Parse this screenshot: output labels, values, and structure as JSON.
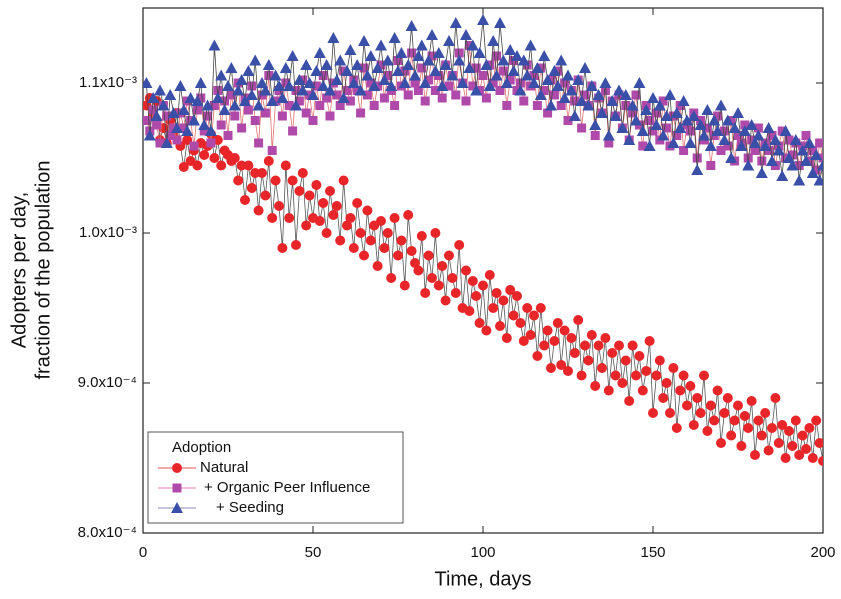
{
  "chart_data": {
    "type": "scatter-line",
    "xlabel": "Time, days",
    "ylabel": [
      "Adopters per day,",
      "fraction of the population"
    ],
    "legend_title": "Adoption",
    "legend": "lower left",
    "xlim": [
      0,
      200
    ],
    "xticks": [
      0,
      50,
      100,
      150,
      200
    ],
    "ylim": [
      0.0008,
      0.00115
    ],
    "yticks": [
      {
        "value": 0.0008,
        "label": "8.0x10⁻⁴"
      },
      {
        "value": 0.0009,
        "label": "9.0x10⁻⁴"
      },
      {
        "value": 0.001,
        "label": "1.0x10⁻³"
      },
      {
        "value": 0.0011,
        "label": "1.1x10⁻³"
      }
    ],
    "x": [
      1,
      2,
      3,
      4,
      5,
      6,
      7,
      8,
      9,
      10,
      11,
      12,
      13,
      14,
      15,
      16,
      17,
      18,
      19,
      20,
      21,
      22,
      23,
      24,
      25,
      26,
      27,
      28,
      29,
      30,
      31,
      32,
      33,
      34,
      35,
      36,
      37,
      38,
      39,
      40,
      41,
      42,
      43,
      44,
      45,
      46,
      47,
      48,
      49,
      50,
      51,
      52,
      53,
      54,
      55,
      56,
      57,
      58,
      59,
      60,
      61,
      62,
      63,
      64,
      65,
      66,
      67,
      68,
      69,
      70,
      71,
      72,
      73,
      74,
      75,
      76,
      77,
      78,
      79,
      80,
      81,
      82,
      83,
      84,
      85,
      86,
      87,
      88,
      89,
      90,
      91,
      92,
      93,
      94,
      95,
      96,
      97,
      98,
      99,
      100,
      101,
      102,
      103,
      104,
      105,
      106,
      107,
      108,
      109,
      110,
      111,
      112,
      113,
      114,
      115,
      116,
      117,
      118,
      119,
      120,
      121,
      122,
      123,
      124,
      125,
      126,
      127,
      128,
      129,
      130,
      131,
      132,
      133,
      134,
      135,
      136,
      137,
      138,
      139,
      140,
      141,
      142,
      143,
      144,
      145,
      146,
      147,
      148,
      149,
      150,
      151,
      152,
      153,
      154,
      155,
      156,
      157,
      158,
      159,
      160,
      161,
      162,
      163,
      164,
      165,
      166,
      167,
      168,
      169,
      170,
      171,
      172,
      173,
      174,
      175,
      176,
      177,
      178,
      179,
      180,
      181,
      182,
      183,
      184,
      185,
      186,
      187,
      188,
      189,
      190,
      191,
      192,
      193,
      194,
      195,
      196,
      197,
      198,
      199,
      200
    ],
    "series": [
      {
        "name": "Natural",
        "marker": "circle",
        "color": "#e8262a",
        "line_color": "#555555",
        "legend_line_color": "#e05050",
        "values": [
          0.001085,
          0.00109,
          0.001078,
          0.001088,
          0.001062,
          0.00107,
          0.00106,
          0.001075,
          0.001065,
          0.00108,
          0.001058,
          0.001044,
          0.001062,
          0.001048,
          0.001055,
          0.001045,
          0.00106,
          0.001052,
          0.001058,
          0.001066,
          0.00105,
          0.001062,
          0.001045,
          0.001055,
          0.001052,
          0.001048,
          0.00105,
          0.001035,
          0.001045,
          0.001022,
          0.001045,
          0.00103,
          0.00104,
          0.001015,
          0.00104,
          0.001025,
          0.001048,
          0.00101,
          0.001035,
          0.001018,
          0.00099,
          0.001045,
          0.00101,
          0.001035,
          0.000992,
          0.001028,
          0.00104,
          0.001005,
          0.001025,
          0.00101,
          0.001032,
          0.001008,
          0.00102,
          0.001,
          0.001028,
          0.001012,
          0.001018,
          0.000995,
          0.001035,
          0.001005,
          0.00101,
          0.00099,
          0.00102,
          0.001,
          0.000985,
          0.001015,
          0.000995,
          0.001005,
          0.000978,
          0.001008,
          0.00099,
          0.001,
          0.00097,
          0.00101,
          0.000985,
          0.000995,
          0.000965,
          0.001012,
          0.000988,
          0.00098,
          0.000975,
          0.000998,
          0.00096,
          0.000985,
          0.00097,
          0.001,
          0.000965,
          0.000978,
          0.000955,
          0.000985,
          0.00097,
          0.00096,
          0.000992,
          0.00095,
          0.000975,
          0.000948,
          0.000968,
          0.000958,
          0.00094,
          0.000965,
          0.000935,
          0.000972,
          0.00095,
          0.00096,
          0.000938,
          0.000955,
          0.00093,
          0.000962,
          0.000945,
          0.000958,
          0.00094,
          0.000928,
          0.00095,
          0.000932,
          0.000945,
          0.000918,
          0.00095,
          0.000925,
          0.000935,
          0.00091,
          0.000928,
          0.00094,
          0.000912,
          0.000935,
          0.000908,
          0.00093,
          0.00092,
          0.000942,
          0.000905,
          0.000925,
          0.000915,
          0.000932,
          0.000898,
          0.000925,
          0.00091,
          0.00093,
          0.000895,
          0.00092,
          0.000905,
          0.000925,
          0.0009,
          0.000915,
          0.000888,
          0.000925,
          0.000905,
          0.000918,
          0.000895,
          0.000908,
          0.000928,
          0.00088,
          0.000905,
          0.000915,
          0.00089,
          0.0009,
          0.00088,
          0.00091,
          0.00087,
          0.000895,
          0.000905,
          0.000885,
          0.000898,
          0.000872,
          0.00089,
          0.00088,
          0.000905,
          0.000868,
          0.000885,
          0.000875,
          0.000895,
          0.00086,
          0.00088,
          0.00089,
          0.000865,
          0.000875,
          0.000885,
          0.000858,
          0.000878,
          0.00087,
          0.000888,
          0.000852,
          0.000875,
          0.000865,
          0.00088,
          0.000855,
          0.00087,
          0.00089,
          0.00086,
          0.000872,
          0.00085,
          0.000868,
          0.000858,
          0.000875,
          0.000852,
          0.000865,
          0.000856,
          0.00087,
          0.00085,
          0.000875,
          0.00086,
          0.000848
        ]
      },
      {
        "name": "+ Organic Peer Influence",
        "marker": "square",
        "color": "#b04aaa",
        "line_color": "#e07070",
        "legend_line_color": "#e080b0",
        "values": [
          0.001075,
          0.001068,
          0.001082,
          0.001072,
          0.00106,
          0.001085,
          0.001078,
          0.001065,
          0.00107,
          0.001062,
          0.00108,
          0.00107,
          0.001088,
          0.001075,
          0.001058,
          0.001082,
          0.00109,
          0.001068,
          0.001078,
          0.00106,
          0.001085,
          0.001095,
          0.001072,
          0.001088,
          0.001065,
          0.001092,
          0.001078,
          0.0011,
          0.00107,
          0.00109,
          0.001082,
          0.001098,
          0.001075,
          0.00106,
          0.001092,
          0.00108,
          0.001105,
          0.001055,
          0.001088,
          0.001095,
          0.001078,
          0.0011,
          0.001085,
          0.001068,
          0.001095,
          0.001088,
          0.001102,
          0.00108,
          0.001092,
          0.001075,
          0.001098,
          0.001085,
          0.001105,
          0.00109,
          0.001078,
          0.0011,
          0.001092,
          0.001085,
          0.001108,
          0.001095,
          0.001088,
          0.001102,
          0.001095,
          0.00108,
          0.00111,
          0.001092,
          0.0011,
          0.001085,
          0.001098,
          0.001112,
          0.00109,
          0.001105,
          0.001095,
          0.001085,
          0.001115,
          0.001098,
          0.001108,
          0.001092,
          0.00112,
          0.0011,
          0.001095,
          0.00111,
          0.001088,
          0.001102,
          0.001118,
          0.001095,
          0.001105,
          0.00109,
          0.001112,
          0.001098,
          0.001105,
          0.001092,
          0.00112,
          0.0011,
          0.001088,
          0.001125,
          0.001098,
          0.00111,
          0.001095,
          0.001105,
          0.00109,
          0.001112,
          0.0011,
          0.001118,
          0.001095,
          0.001108,
          0.001085,
          0.001102,
          0.001115,
          0.001095,
          0.0011,
          0.001088,
          0.001112,
          0.001098,
          0.001105,
          0.001085,
          0.00111,
          0.001095,
          0.00108,
          0.001102,
          0.001092,
          0.001108,
          0.001085,
          0.0011,
          0.001075,
          0.001095,
          0.001088,
          0.001102,
          0.00107,
          0.001092,
          0.001085,
          0.001098,
          0.001065,
          0.00109,
          0.00108,
          0.001095,
          0.00106,
          0.001088,
          0.001078,
          0.001092,
          0.00107,
          0.001085,
          0.001062,
          0.00108,
          0.001092,
          0.001072,
          0.001058,
          0.001085,
          0.001075,
          0.001068,
          0.00108,
          0.001062,
          0.001088,
          0.00107,
          0.001058,
          0.001078,
          0.001065,
          0.001085,
          0.001055,
          0.001072,
          0.001068,
          0.00108,
          0.00105,
          0.001075,
          0.001062,
          0.00107,
          0.001045,
          0.001065,
          0.001078,
          0.001055,
          0.001068,
          0.001058,
          0.001075,
          0.001048,
          0.001065,
          0.00106,
          0.001072,
          0.00105,
          0.001062,
          0.001055,
          0.00107,
          0.001048,
          0.00106,
          0.001055,
          0.001065,
          0.001045,
          0.001058,
          0.001068,
          0.00105,
          0.001062,
          0.001052,
          0.00106,
          0.001045,
          0.001058,
          0.001065,
          0.001048,
          0.001055,
          0.001042,
          0.00106,
          0.00105
        ]
      },
      {
        "name": "+ Seeding",
        "marker": "triangle",
        "color": "#3a4fa8",
        "line_color": "#444444",
        "legend_line_color": "#9088b0",
        "values": [
          0.0011,
          0.001065,
          0.00109,
          0.001078,
          0.001095,
          0.001085,
          0.00106,
          0.001092,
          0.00108,
          0.00107,
          0.001098,
          0.001082,
          0.001068,
          0.00109,
          0.001075,
          0.001088,
          0.0011,
          0.001072,
          0.001085,
          0.001068,
          0.001125,
          0.00109,
          0.001105,
          0.001082,
          0.001098,
          0.00111,
          0.001085,
          0.001095,
          0.001102,
          0.001088,
          0.001108,
          0.001092,
          0.001115,
          0.001085,
          0.0011,
          0.001095,
          0.001112,
          0.001088,
          0.001105,
          0.001098,
          0.00109,
          0.00111,
          0.001098,
          0.001118,
          0.001085,
          0.001102,
          0.001095,
          0.001112,
          0.0011,
          0.001092,
          0.001108,
          0.00112,
          0.001098,
          0.001112,
          0.001095,
          0.00113,
          0.001102,
          0.001115,
          0.00109,
          0.001108,
          0.001122,
          0.0011,
          0.001112,
          0.001095,
          0.001128,
          0.001105,
          0.001118,
          0.001098,
          0.00111,
          0.001125,
          0.001102,
          0.001115,
          0.001098,
          0.00113,
          0.001108,
          0.00112,
          0.0011,
          0.001112,
          0.001138,
          0.001105,
          0.001118,
          0.001125,
          0.0011,
          0.001115,
          0.001132,
          0.001108,
          0.00112,
          0.001098,
          0.001112,
          0.001128,
          0.001105,
          0.00114,
          0.001115,
          0.0011,
          0.001132,
          0.00111,
          0.001125,
          0.001095,
          0.00112,
          0.001142,
          0.001112,
          0.001098,
          0.001128,
          0.001105,
          0.00114,
          0.001115,
          0.0011,
          0.001122,
          0.001108,
          0.001118,
          0.001095,
          0.001115,
          0.001105,
          0.001125,
          0.0011,
          0.00111,
          0.001092,
          0.001118,
          0.001102,
          0.001085,
          0.001108,
          0.001098,
          0.001115,
          0.00109,
          0.001105,
          0.001095,
          0.001078,
          0.001102,
          0.001088,
          0.00111,
          0.001085,
          0.001098,
          0.001072,
          0.001092,
          0.00108,
          0.0011,
          0.001065,
          0.001088,
          0.001078,
          0.001095,
          0.00107,
          0.001092,
          0.001062,
          0.001085,
          0.001075,
          0.0011,
          0.001068,
          0.001082,
          0.001058,
          0.00109,
          0.001072,
          0.001085,
          0.001065,
          0.001078,
          0.001092,
          0.00106,
          0.00108,
          0.00107,
          0.001088,
          0.001075,
          0.00106,
          0.001078,
          0.001042,
          0.001072,
          0.001065,
          0.001082,
          0.001058,
          0.001075,
          0.001068,
          0.001085,
          0.001062,
          0.001075,
          0.00105,
          0.00107,
          0.00108,
          0.001058,
          0.001068,
          0.001045,
          0.001072,
          0.00106,
          0.001065,
          0.00104,
          0.001058,
          0.00107,
          0.001048,
          0.001062,
          0.001055,
          0.001038,
          0.001068,
          0.00105,
          0.001045,
          0.001062,
          0.001035,
          0.001055,
          0.001048,
          0.00106,
          0.00104,
          0.001052,
          0.001035,
          0.001045
        ]
      }
    ]
  }
}
